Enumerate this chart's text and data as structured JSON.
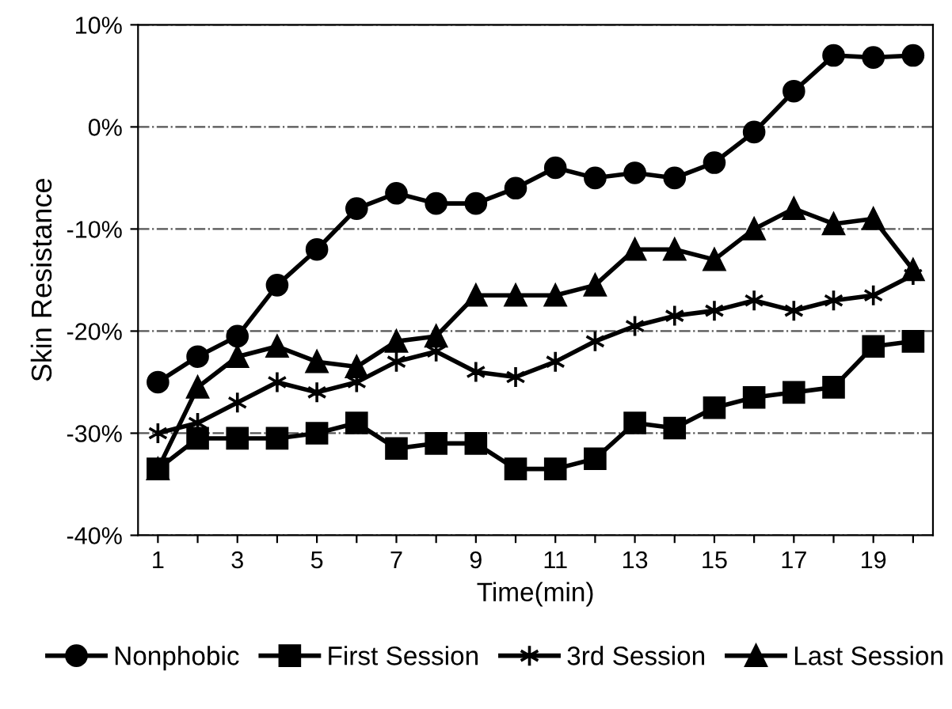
{
  "chart_data": {
    "type": "line",
    "xlabel": "Time(min)",
    "ylabel": "Skin Resistance",
    "x": [
      1,
      2,
      3,
      4,
      5,
      6,
      7,
      8,
      9,
      10,
      11,
      12,
      13,
      14,
      15,
      16,
      17,
      18,
      19,
      20
    ],
    "xlim": [
      0.5,
      20.5
    ],
    "xticks": [
      1,
      {
        "value": 2,
        "label": null
      },
      3,
      {
        "value": 4,
        "label": null
      },
      5,
      {
        "value": 6,
        "label": null
      },
      7,
      {
        "value": 8,
        "label": null
      },
      9,
      {
        "value": 10,
        "label": null
      },
      11,
      {
        "value": 12,
        "label": null
      },
      13,
      {
        "value": 14,
        "label": null
      },
      15,
      {
        "value": 16,
        "label": null
      },
      17,
      {
        "value": 18,
        "label": null
      },
      19,
      {
        "value": 20,
        "label": null
      }
    ],
    "ylim": [
      -40,
      10
    ],
    "yticks": [
      {
        "value": -40,
        "label": "-40%"
      },
      {
        "value": -30,
        "label": "-30%"
      },
      {
        "value": -20,
        "label": "-20%"
      },
      {
        "value": -10,
        "label": "-10%"
      },
      {
        "value": 0,
        "label": "0%"
      },
      {
        "value": 10,
        "label": "10%"
      }
    ],
    "grid": "y",
    "legend": "bottom",
    "line_style": "solid",
    "series": [
      {
        "name": "Nonphobic",
        "color": "#000000",
        "marker": "circle",
        "values": [
          -25,
          -22.5,
          -20.5,
          -15.5,
          -12,
          -8,
          -6.5,
          -7.5,
          -7.5,
          -6,
          -4,
          -5,
          -4.5,
          -5,
          -3.5,
          -0.5,
          3.5,
          7,
          6.8,
          7
        ]
      },
      {
        "name": "First Session",
        "color": "#000000",
        "marker": "square",
        "values": [
          -33.5,
          -30.5,
          -30.5,
          -30.5,
          -30,
          -29,
          -31.5,
          -31,
          -31,
          -33.5,
          -33.5,
          -32.5,
          -29,
          -29.5,
          -27.5,
          -26.5,
          -26,
          -25.5,
          -21.5,
          -21
        ]
      },
      {
        "name": "3rd Session",
        "color": "#000000",
        "marker": "cross",
        "values": [
          -30,
          -29,
          -27,
          -25,
          -26,
          -25,
          -23,
          -22,
          -24,
          -24.5,
          -23,
          -21,
          -19.5,
          -18.5,
          -18,
          -17,
          -18,
          -17,
          -16.5,
          -14.5
        ]
      },
      {
        "name": "Last Session",
        "color": "#000000",
        "marker": "triangle",
        "values": [
          -33.5,
          -25.5,
          -22.5,
          -21.5,
          -23,
          -23.5,
          -21,
          -20.5,
          -16.5,
          -16.5,
          -16.5,
          -15.5,
          -12,
          -12,
          -13,
          -10,
          -8,
          -9.5,
          -9,
          -14
        ]
      }
    ]
  }
}
